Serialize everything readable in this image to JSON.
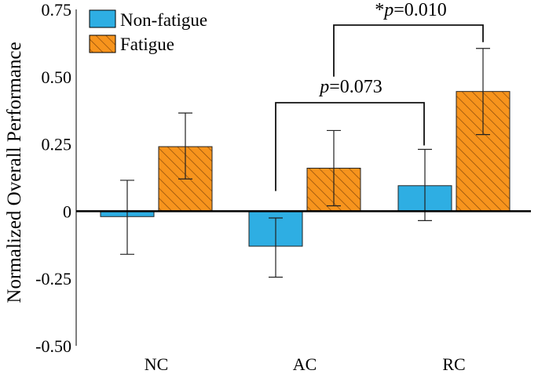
{
  "chart_data": {
    "type": "bar",
    "ylabel": "Normalized Overall Performance",
    "xlabel": "",
    "ylim": [
      -0.5,
      0.75
    ],
    "yticks": [
      0.75,
      0.5,
      0.25,
      0,
      -0.25,
      -0.5
    ],
    "ytick_labels": [
      "0.75",
      "0.50",
      "0.25",
      "0",
      "-0.25",
      "-0.50"
    ],
    "categories": [
      "NC",
      "AC",
      "RC"
    ],
    "legend_position": "top-left",
    "series": [
      {
        "name": "Non-fatigue",
        "color": "#2eaee3",
        "pattern": "solid",
        "values": [
          -0.02,
          -0.13,
          0.095
        ],
        "error_low": [
          -0.16,
          -0.245,
          -0.035
        ],
        "error_high": [
          0.115,
          -0.025,
          0.23
        ]
      },
      {
        "name": "Fatigue",
        "color": "#f7941d",
        "pattern": "hatched",
        "values": [
          0.24,
          0.16,
          0.445
        ],
        "error_low": [
          0.12,
          0.02,
          0.285
        ],
        "error_high": [
          0.365,
          0.3,
          0.605
        ]
      }
    ],
    "annotations": [
      {
        "star": "",
        "p": "p",
        "text": "=0.073",
        "from": 1,
        "to": 2
      },
      {
        "star": "*",
        "p": "p",
        "text": "=0.010",
        "from": 1,
        "to": 2
      }
    ]
  }
}
